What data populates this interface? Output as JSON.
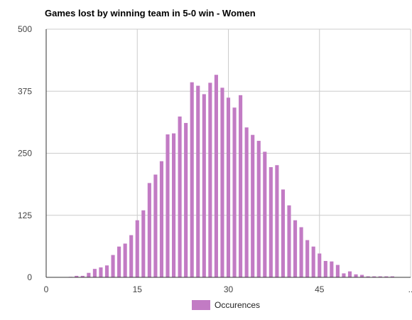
{
  "chart_data": {
    "type": "bar",
    "title": "Games lost by winning team in 5-0 win - Women",
    "xlabel": "",
    "ylabel": "",
    "x_min": 0,
    "x_max": 60,
    "x_ticks": [
      "0",
      "15",
      "30",
      "45",
      ".."
    ],
    "ylim": [
      0,
      500
    ],
    "y_ticks": [
      "0",
      "125",
      "250",
      "375",
      "500"
    ],
    "grid": true,
    "legend_position": "bottom",
    "color": "#c27bc4",
    "series": [
      {
        "name": "Occurences",
        "x": [
          4,
          5,
          6,
          7,
          8,
          9,
          10,
          11,
          12,
          13,
          14,
          15,
          16,
          17,
          18,
          19,
          20,
          21,
          22,
          23,
          24,
          25,
          26,
          27,
          28,
          29,
          30,
          31,
          32,
          33,
          34,
          35,
          36,
          37,
          38,
          39,
          40,
          41,
          42,
          43,
          44,
          45,
          46,
          47,
          48,
          49,
          50,
          51,
          52,
          53,
          54,
          55,
          56,
          57
        ],
        "values": [
          1,
          3,
          3,
          9,
          17,
          20,
          24,
          45,
          62,
          68,
          85,
          115,
          135,
          190,
          207,
          234,
          288,
          290,
          324,
          311,
          393,
          386,
          369,
          392,
          408,
          382,
          362,
          342,
          367,
          302,
          287,
          275,
          253,
          222,
          226,
          177,
          145,
          115,
          101,
          75,
          62,
          48,
          33,
          32,
          25,
          8,
          12,
          6,
          5,
          2,
          2,
          2,
          2,
          2
        ]
      }
    ]
  }
}
